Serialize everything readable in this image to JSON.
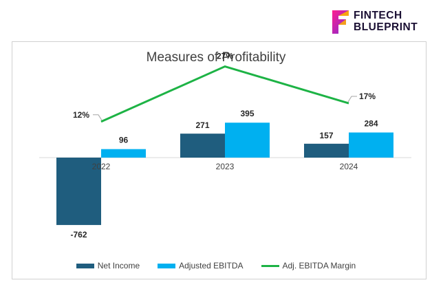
{
  "brand": {
    "line1": "FINTECH",
    "line2": "BLUEPRINT",
    "logo_icon": "f-letter-logo-icon",
    "colors": {
      "pink": "#ff1f8e",
      "orange": "#ffb400",
      "purple": "#7a2bd6",
      "text": "#1a0f33"
    }
  },
  "chart_data": {
    "type": "bar",
    "title": "Measures of Profitability",
    "categories": [
      "2022",
      "2023",
      "2024"
    ],
    "series": [
      {
        "name": "Net Income",
        "type": "bar",
        "color": "#1f5d7e",
        "values": [
          -762,
          271,
          157
        ],
        "labels": [
          "-762",
          "271",
          "157"
        ]
      },
      {
        "name": "Adjusted EBITDA",
        "type": "bar",
        "color": "#00b0f0",
        "values": [
          96,
          395,
          284
        ],
        "labels": [
          "96",
          "395",
          "284"
        ]
      },
      {
        "name": "Adj. EBITDA Margin",
        "type": "line",
        "axis": "secondary",
        "color": "#1db345",
        "values": [
          12,
          27,
          17
        ],
        "labels": [
          "12%",
          "27%",
          "17%"
        ]
      }
    ],
    "ylim": [
      -800,
      400
    ],
    "grid": false,
    "legend_position": "bottom"
  }
}
